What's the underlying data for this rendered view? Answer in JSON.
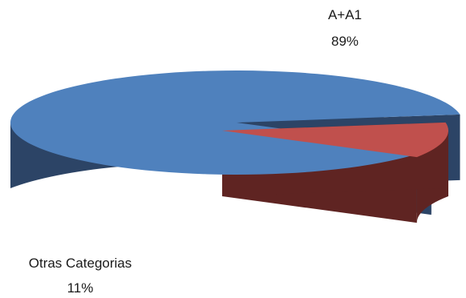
{
  "chart_data": {
    "type": "pie",
    "style": "3d-exploded",
    "title": "",
    "slices": [
      {
        "category": "A+A1",
        "value": 89,
        "label": "89%",
        "color_top": "#4f81bd",
        "color_side": "#2c4466"
      },
      {
        "category": "Otras Categorias",
        "value": 11,
        "label": "11%",
        "color_top": "#c0504d",
        "color_side": "#5f2422"
      }
    ],
    "legend": "none",
    "data_labels": "category-and-percent"
  }
}
